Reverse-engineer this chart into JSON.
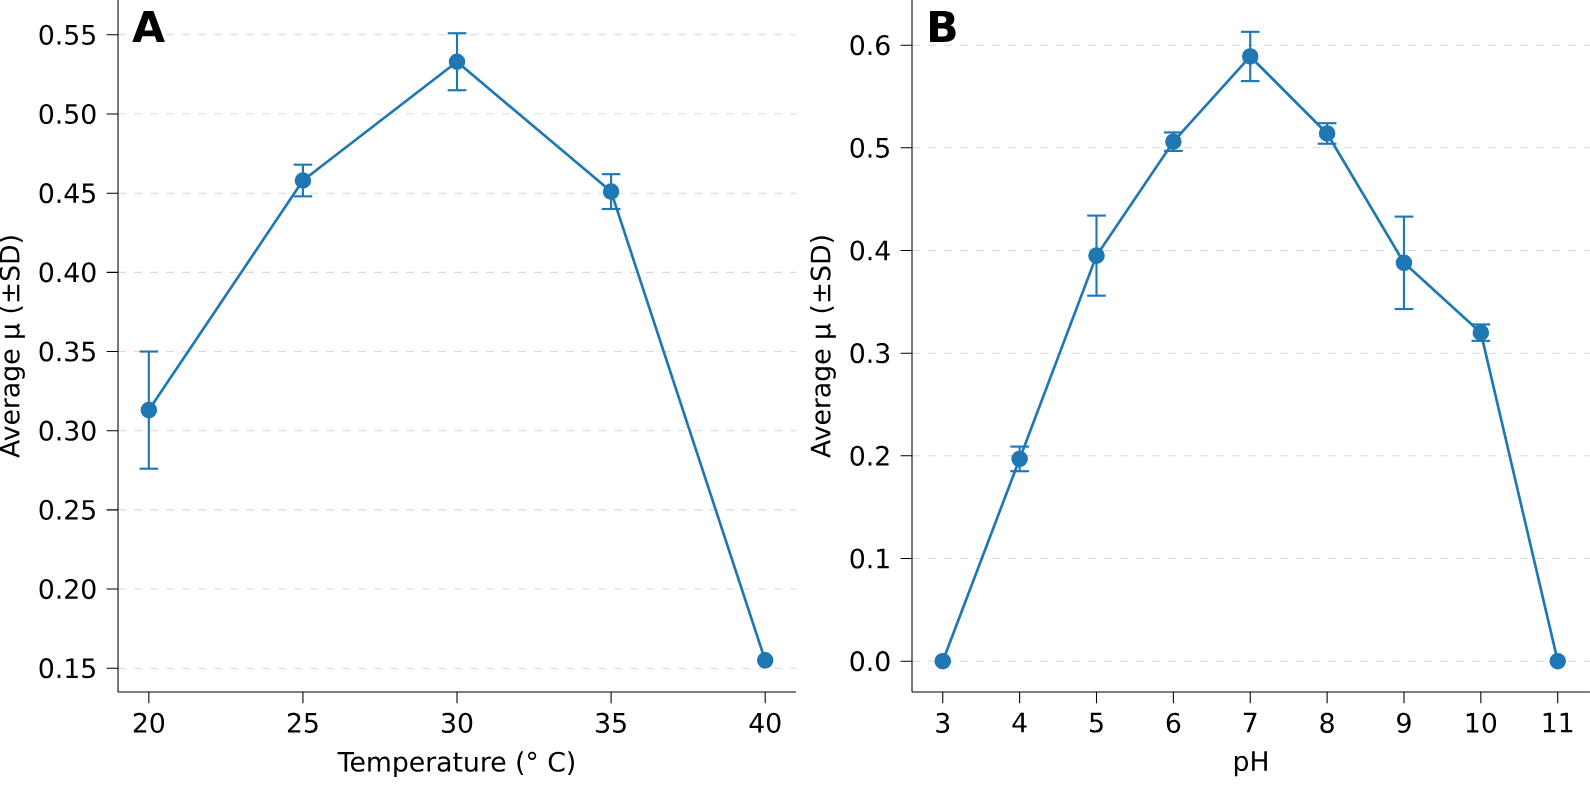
{
  "chart_data": [
    {
      "type": "line",
      "title": "A",
      "xlabel": "Temperature (° C)",
      "ylabel": "Average μ (±SD)",
      "x": [
        20,
        25,
        30,
        35,
        40
      ],
      "series": [
        {
          "color": "#1f77b4",
          "values": [
            0.313,
            0.458,
            0.533,
            0.451,
            0.155
          ],
          "errors": [
            0.037,
            0.01,
            0.018,
            0.011,
            null
          ]
        }
      ],
      "xlim": [
        19.0,
        41.0
      ],
      "xticks": [
        20,
        25,
        30,
        35,
        40
      ],
      "ylim": [
        0.135,
        0.572
      ],
      "yticks": [
        {
          "value": 0.15,
          "label": "0.15"
        },
        {
          "value": 0.2,
          "label": "0.20"
        },
        {
          "value": 0.25,
          "label": "0.25"
        },
        {
          "value": 0.3,
          "label": "0.30"
        },
        {
          "value": 0.35,
          "label": "0.35"
        },
        {
          "value": 0.4,
          "label": "0.40"
        },
        {
          "value": 0.45,
          "label": "0.45"
        },
        {
          "value": 0.5,
          "label": "0.50"
        },
        {
          "value": 0.55,
          "label": "0.55"
        }
      ],
      "grid": "y",
      "marker": "circle",
      "line_style": "solid"
    },
    {
      "type": "line",
      "title": "B",
      "xlabel": "pH",
      "ylabel": "Average μ (±SD)",
      "x": [
        3,
        4,
        5,
        6,
        7,
        8,
        9,
        10,
        11
      ],
      "series": [
        {
          "color": "#1f77b4",
          "values": [
            0.0,
            0.197,
            0.395,
            0.506,
            0.589,
            0.514,
            0.388,
            0.32,
            0.0
          ],
          "errors": [
            null,
            0.012,
            0.039,
            0.009,
            0.024,
            0.01,
            0.045,
            0.008,
            null
          ]
        }
      ],
      "xlim": [
        2.6,
        11.42
      ],
      "xticks": [
        3,
        4,
        5,
        6,
        7,
        8,
        9,
        10,
        11
      ],
      "ylim": [
        -0.03,
        0.644
      ],
      "yticks": [
        {
          "value": 0.0,
          "label": "0.0"
        },
        {
          "value": 0.1,
          "label": "0.1"
        },
        {
          "value": 0.2,
          "label": "0.2"
        },
        {
          "value": 0.3,
          "label": "0.3"
        },
        {
          "value": 0.4,
          "label": "0.4"
        },
        {
          "value": 0.5,
          "label": "0.5"
        },
        {
          "value": 0.6,
          "label": "0.6"
        }
      ],
      "grid": "y",
      "marker": "circle",
      "line_style": "solid"
    }
  ]
}
